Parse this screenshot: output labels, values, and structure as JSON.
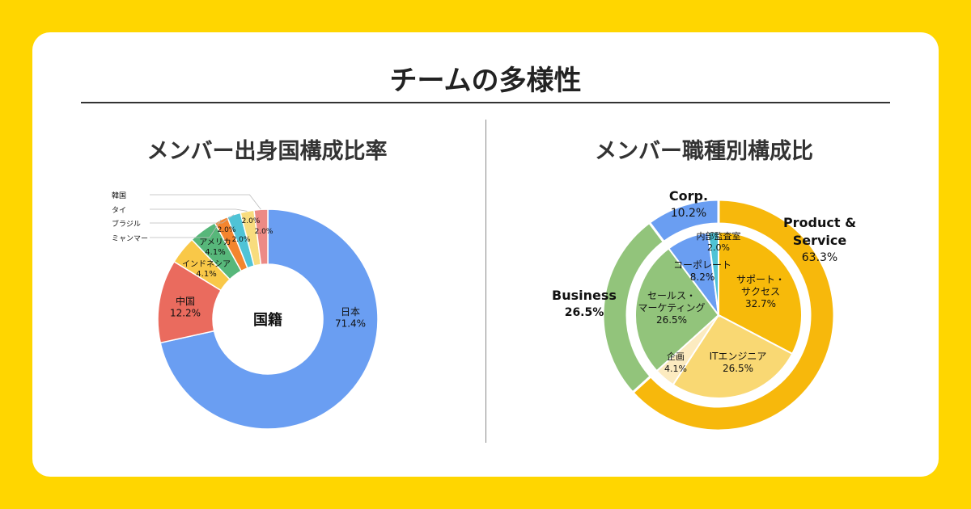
{
  "main_title": "チームの多様性",
  "chart_data": [
    {
      "type": "pie",
      "title": "メンバー出身国構成比率",
      "center_label": "国籍",
      "slices": [
        {
          "label": "日本",
          "value": 71.4,
          "value_label": "71.4%",
          "color": "#6A9EF2"
        },
        {
          "label": "中国",
          "value": 12.2,
          "value_label": "12.2%",
          "color": "#EA6B5E"
        },
        {
          "label": "インドネシア",
          "value": 4.1,
          "value_label": "4.1%",
          "color": "#F9C848"
        },
        {
          "label": "アメリカ",
          "value": 4.1,
          "value_label": "4.1%",
          "color": "#57B77A"
        },
        {
          "label": "ミャンマー",
          "value": 2.0,
          "value_label": "2.0%",
          "color": "#F4852E"
        },
        {
          "label": "ブラジル",
          "value": 2.0,
          "value_label": "2.0%",
          "color": "#4FC3D6"
        },
        {
          "label": "タイ",
          "value": 2.0,
          "value_label": "2.0%",
          "color": "#F8DC7E"
        },
        {
          "label": "韓国",
          "value": 2.0,
          "value_label": "2.0%",
          "color": "#EC8A85"
        }
      ]
    },
    {
      "type": "pie",
      "title": "メンバー職種別構成比",
      "outer": [
        {
          "label": "Product & Service",
          "value": 63.3,
          "value_label": "63.3%",
          "color": "#F7B80C"
        },
        {
          "label": "Business",
          "value": 26.5,
          "value_label": "26.5%",
          "color": "#92C47B"
        },
        {
          "label": "Corp.",
          "value": 10.2,
          "value_label": "10.2%",
          "color": "#6A9EF2"
        }
      ],
      "inner": [
        {
          "label": "サポート・サクセス",
          "value": 32.7,
          "value_label": "32.7%",
          "color": "#F7BA0A"
        },
        {
          "label": "ITエンジニア",
          "value": 26.5,
          "value_label": "26.5%",
          "color": "#F9D873"
        },
        {
          "label": "企画",
          "value": 4.1,
          "value_label": "4.1%",
          "color": "#FCEBC0"
        },
        {
          "label": "セールス・マーケティング",
          "value": 26.5,
          "value_label": "26.5%",
          "color": "#92C47B"
        },
        {
          "label": "コーポレート",
          "value": 8.2,
          "value_label": "8.2%",
          "color": "#6A9EF2"
        },
        {
          "label": "内部監査室",
          "value": 2.0,
          "value_label": "2.0%",
          "color": "#4FC3D6"
        }
      ]
    }
  ]
}
